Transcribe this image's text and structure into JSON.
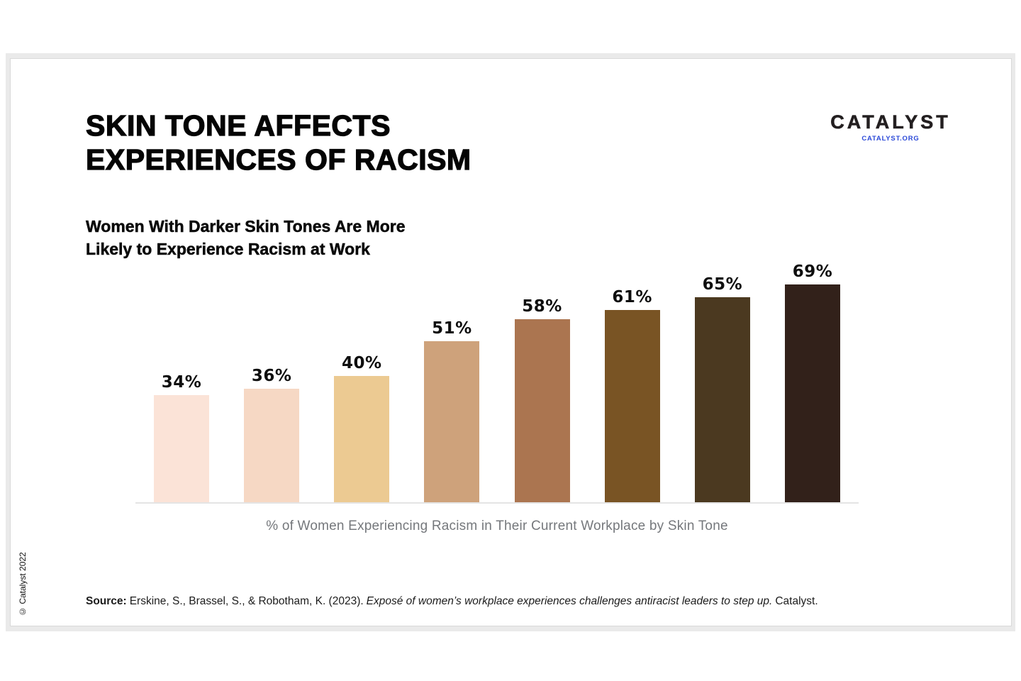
{
  "header": {
    "title_line1": "SKIN TONE AFFECTS",
    "title_line2": "EXPERIENCES OF RACISM",
    "subtitle_line1": "Women With Darker Skin Tones Are More",
    "subtitle_line2": "Likely to Experience Racism at Work"
  },
  "logo": {
    "wordmark": "CATALYST",
    "tagline": "CATALYST.ORG",
    "wordmark_color": "#231f20",
    "tagline_color": "#2b49d8"
  },
  "chart_data": {
    "type": "bar",
    "values": [
      34,
      36,
      40,
      51,
      58,
      61,
      65,
      69
    ],
    "value_suffix": "%",
    "bar_colors": [
      "#fbe3d7",
      "#f6d8c4",
      "#ecca92",
      "#cea27b",
      "#ab7550",
      "#795424",
      "#4b3920",
      "#32211a"
    ],
    "color_meaning": "skin tone from lightest to darkest",
    "caption": "% of Women Experiencing Racism in Their Current Workplace by Skin Tone",
    "title": "",
    "xlabel": "",
    "ylabel": "",
    "ylim": [
      0,
      69
    ],
    "grid": false,
    "legend": false,
    "data_labels": true
  },
  "footer": {
    "source_label": "Source:",
    "source_authors": "Erskine, S., Brassel, S., & Robotham, K. (2023).",
    "source_title": "Exposé of women’s workplace experiences challenges antiracist leaders to step up.",
    "source_publisher": "Catalyst.",
    "copyright": "© Catalyst 2022"
  }
}
